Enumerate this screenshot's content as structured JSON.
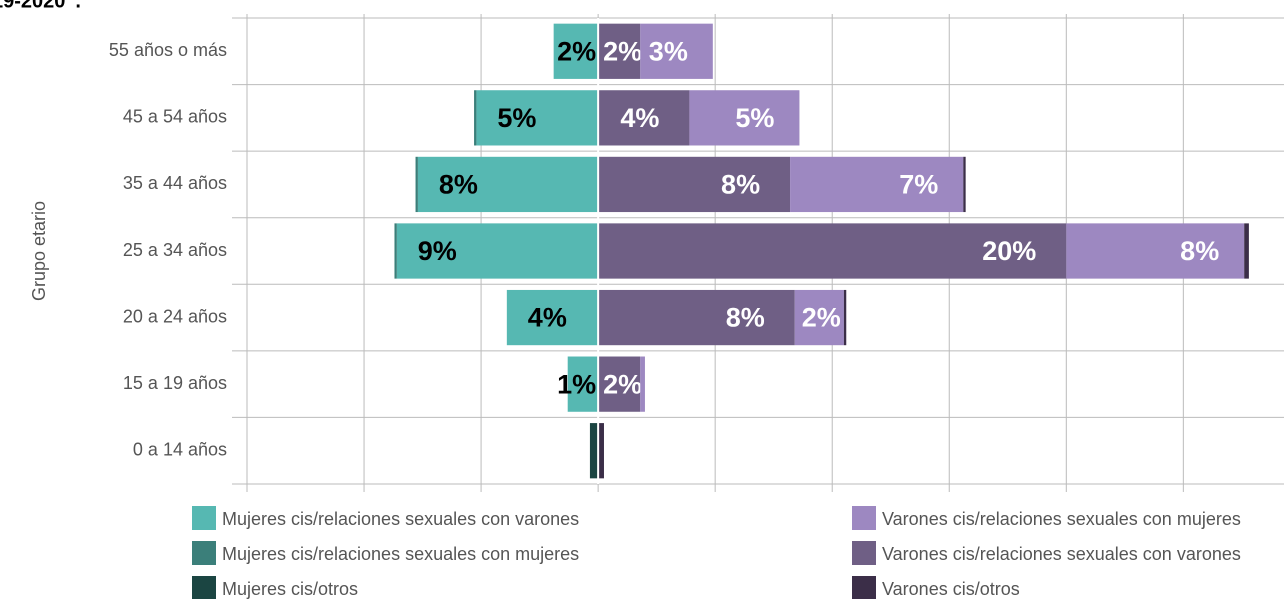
{
  "chart_data": {
    "type": "diverging-bar",
    "title": "19-2020”.",
    "y_label": "Grupo etario",
    "categories": [
      "55 años o más",
      "45 a 54 años",
      "35 a 44 años",
      "25 a 34 años",
      "20 a 24 años",
      "15 a 19 años",
      "0 a 14 años"
    ],
    "xlim": [
      -15,
      29.3
    ],
    "xticks": [
      -15,
      -10,
      -5,
      0,
      5,
      10,
      15,
      20,
      25
    ],
    "grid": true,
    "series": [
      {
        "name": "Mujeres cis/relaciones sexuales con varones",
        "color": "#56b8b2",
        "side": "left",
        "label_color": "#000000",
        "values": [
          1.9,
          5.2,
          7.7,
          8.6,
          3.9,
          1.3,
          0
        ],
        "value_labels": [
          "2%",
          "5%",
          "8%",
          "9%",
          "4%",
          "1%",
          null
        ]
      },
      {
        "name": "Mujeres cis/relaciones sexuales con mujeres",
        "color": "#3b7f7a",
        "side": "left",
        "values": [
          0,
          0.1,
          0.1,
          0.1,
          0,
          0,
          0
        ]
      },
      {
        "name": "Mujeres cis/otros",
        "color": "#1b4542",
        "side": "left",
        "values": [
          0,
          0,
          0,
          0,
          0,
          0,
          0.35
        ]
      },
      {
        "name": "Varones cis/relaciones sexuales con varones",
        "color": "#6f5f85",
        "side": "right",
        "label_color": "#ffffff",
        "values": [
          1.8,
          3.9,
          8.2,
          20,
          8.4,
          1.8,
          0
        ],
        "value_labels": [
          "2%",
          "4%",
          "8%",
          "20%",
          "8%",
          "2%",
          null
        ]
      },
      {
        "name": "Varones cis/relaciones sexuales con mujeres",
        "color": "#9d88c1",
        "side": "right",
        "label_color": "#ffffff",
        "values": [
          3.1,
          4.7,
          7.4,
          7.6,
          2.1,
          0.2,
          0
        ],
        "value_labels": [
          "3%",
          "5%",
          "7%",
          "8%",
          "2%",
          null,
          null
        ]
      },
      {
        "name": "Varones cis/otros",
        "color": "#3b2e48",
        "side": "right",
        "values": [
          0,
          0,
          0.1,
          0.2,
          0.1,
          0,
          0.25
        ]
      }
    ]
  }
}
